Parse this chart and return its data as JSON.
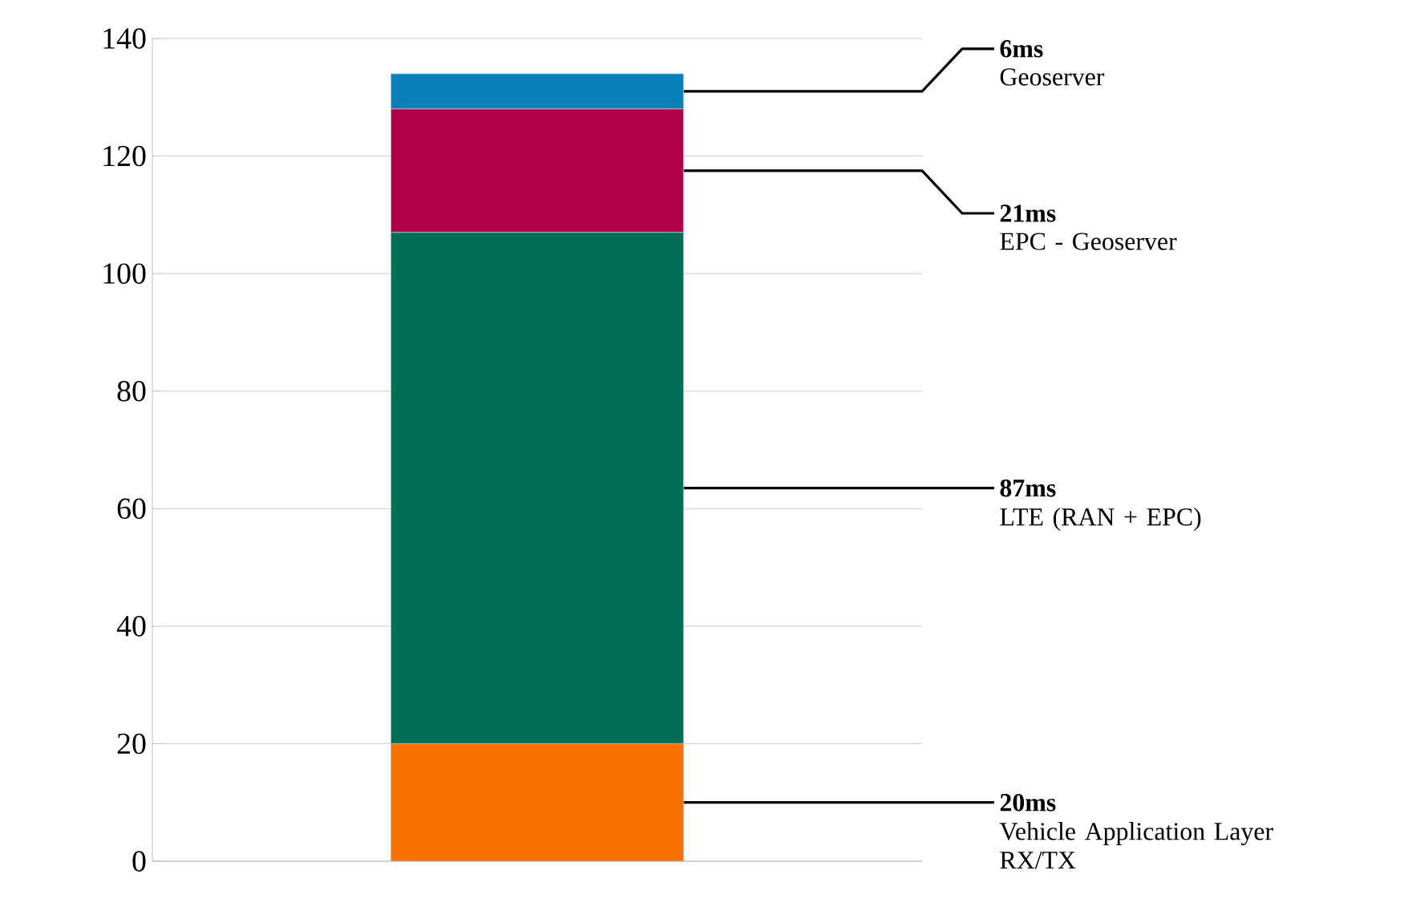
{
  "chart_data": {
    "type": "bar",
    "stacked": true,
    "categories": [
      null
    ],
    "series": [
      {
        "name": "Vehicle Application Layer RX/TX",
        "color": "#f77000",
        "values": [
          20
        ],
        "value_labels": [
          "20ms"
        ]
      },
      {
        "name": "LTE (RAN  + EPC)",
        "color": "#006e55",
        "values": [
          87
        ],
        "value_labels": [
          "87ms"
        ]
      },
      {
        "name": "EPC - Geoserver",
        "color": "#b00048",
        "values": [
          21
        ],
        "value_labels": [
          "21ms"
        ]
      },
      {
        "name": "Geoserver",
        "color": "#0a80b8",
        "values": [
          6
        ],
        "value_labels": [
          "6ms"
        ]
      }
    ],
    "ylim": [
      0,
      140
    ],
    "yticks": [
      0,
      20,
      40,
      60,
      80,
      100,
      120,
      140
    ],
    "grid": "y"
  }
}
